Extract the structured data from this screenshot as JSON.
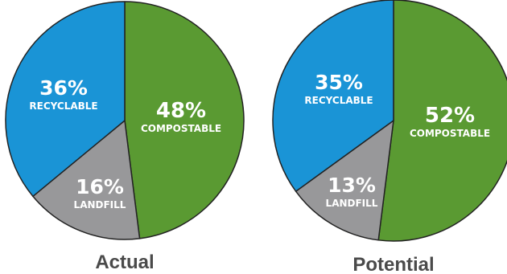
{
  "colors": {
    "compostable": "#5a9a32",
    "recyclable": "#1a94d6",
    "landfill": "#98989a",
    "outline": "#222222",
    "title": "#4a4a4a"
  },
  "chart_data": [
    {
      "type": "pie",
      "title": "Actual",
      "slices": [
        {
          "pct_label": "48%",
          "label": "COMPOSTABLE",
          "value": 48,
          "color_key": "compostable"
        },
        {
          "pct_label": "16%",
          "label": "LANDFILL",
          "value": 16,
          "color_key": "landfill"
        },
        {
          "pct_label": "36%",
          "label": "RECYCLABLE",
          "value": 36,
          "color_key": "recyclable"
        }
      ]
    },
    {
      "type": "pie",
      "title": "Potential",
      "slices": [
        {
          "pct_label": "52%",
          "label": "COMPOSTABLE",
          "value": 52,
          "color_key": "compostable"
        },
        {
          "pct_label": "13%",
          "label": "LANDFILL",
          "value": 13,
          "color_key": "landfill"
        },
        {
          "pct_label": "35%",
          "label": "RECYCLABLE",
          "value": 35,
          "color_key": "recyclable"
        }
      ]
    }
  ]
}
